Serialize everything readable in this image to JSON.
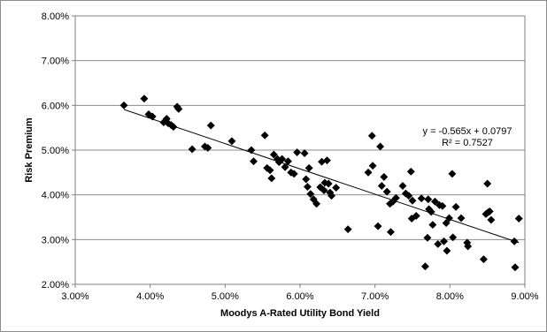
{
  "chart_data": {
    "type": "scatter",
    "title": "",
    "xlabel": "Moodys A-Rated Utility Bond Yield",
    "ylabel": "Risk Premium",
    "xlim": [
      0.03,
      0.09
    ],
    "ylim": [
      0.02,
      0.08
    ],
    "x_ticks": [
      0.03,
      0.04,
      0.05,
      0.06,
      0.07,
      0.08,
      0.09
    ],
    "y_ticks": [
      0.02,
      0.03,
      0.04,
      0.05,
      0.06,
      0.07,
      0.08
    ],
    "x_tick_labels": [
      "3.00%",
      "4.00%",
      "5.00%",
      "6.00%",
      "7.00%",
      "8.00%",
      "9.00%"
    ],
    "y_tick_labels": [
      "2.00%",
      "3.00%",
      "4.00%",
      "5.00%",
      "6.00%",
      "7.00%",
      "8.00%"
    ],
    "grid": "horizontal",
    "legend": "none",
    "marker": "diamond",
    "marker_color": "#000000",
    "trendline": {
      "type": "linear",
      "slope": -0.565,
      "intercept": 0.0797,
      "equation": "y = -0.565x + 0.0797",
      "r_squared_label": "R² = 0.7527"
    },
    "points": [
      [
        0.0365,
        0.06
      ],
      [
        0.0392,
        0.0615
      ],
      [
        0.0398,
        0.058
      ],
      [
        0.0403,
        0.0575
      ],
      [
        0.0418,
        0.0562
      ],
      [
        0.0422,
        0.057
      ],
      [
        0.0424,
        0.056
      ],
      [
        0.0428,
        0.0556
      ],
      [
        0.0431,
        0.0552
      ],
      [
        0.0436,
        0.0597
      ],
      [
        0.0438,
        0.0592
      ],
      [
        0.0456,
        0.0502
      ],
      [
        0.0473,
        0.0508
      ],
      [
        0.0477,
        0.0505
      ],
      [
        0.0481,
        0.0555
      ],
      [
        0.0509,
        0.052
      ],
      [
        0.0535,
        0.05
      ],
      [
        0.0538,
        0.0475
      ],
      [
        0.0553,
        0.0533
      ],
      [
        0.0556,
        0.046
      ],
      [
        0.056,
        0.0455
      ],
      [
        0.0562,
        0.0437
      ],
      [
        0.0565,
        0.049
      ],
      [
        0.057,
        0.048
      ],
      [
        0.0572,
        0.0473
      ],
      [
        0.0576,
        0.048
      ],
      [
        0.058,
        0.0462
      ],
      [
        0.0584,
        0.0475
      ],
      [
        0.0588,
        0.045
      ],
      [
        0.0592,
        0.0447
      ],
      [
        0.0596,
        0.0495
      ],
      [
        0.0606,
        0.0493
      ],
      [
        0.0608,
        0.0435
      ],
      [
        0.061,
        0.0418
      ],
      [
        0.0612,
        0.046
      ],
      [
        0.0614,
        0.0402
      ],
      [
        0.0618,
        0.039
      ],
      [
        0.0622,
        0.038
      ],
      [
        0.0627,
        0.0417
      ],
      [
        0.0629,
        0.0474
      ],
      [
        0.0632,
        0.041
      ],
      [
        0.0633,
        0.0427
      ],
      [
        0.0636,
        0.0477
      ],
      [
        0.0638,
        0.0425
      ],
      [
        0.064,
        0.0405
      ],
      [
        0.0642,
        0.0398
      ],
      [
        0.0648,
        0.0416
      ],
      [
        0.0664,
        0.0323
      ],
      [
        0.0691,
        0.045
      ],
      [
        0.0696,
        0.0532
      ],
      [
        0.0697,
        0.0465
      ],
      [
        0.0704,
        0.033
      ],
      [
        0.0707,
        0.0508
      ],
      [
        0.0709,
        0.042
      ],
      [
        0.0712,
        0.044
      ],
      [
        0.0716,
        0.0407
      ],
      [
        0.072,
        0.038
      ],
      [
        0.0721,
        0.0317
      ],
      [
        0.0724,
        0.0385
      ],
      [
        0.0728,
        0.0393
      ],
      [
        0.0737,
        0.042
      ],
      [
        0.0741,
        0.0403
      ],
      [
        0.0745,
        0.0398
      ],
      [
        0.0748,
        0.0452
      ],
      [
        0.0749,
        0.0347
      ],
      [
        0.075,
        0.0387
      ],
      [
        0.0755,
        0.0353
      ],
      [
        0.0762,
        0.0392
      ],
      [
        0.0767,
        0.024
      ],
      [
        0.077,
        0.0304
      ],
      [
        0.0771,
        0.039
      ],
      [
        0.0772,
        0.0368
      ],
      [
        0.0775,
        0.0362
      ],
      [
        0.0777,
        0.0333
      ],
      [
        0.078,
        0.0385
      ],
      [
        0.0784,
        0.029
      ],
      [
        0.0786,
        0.0377
      ],
      [
        0.079,
        0.0375
      ],
      [
        0.0792,
        0.0296
      ],
      [
        0.0795,
        0.0337
      ],
      [
        0.0796,
        0.0275
      ],
      [
        0.0799,
        0.0348
      ],
      [
        0.0803,
        0.0447
      ],
      [
        0.0804,
        0.0305
      ],
      [
        0.0808,
        0.0373
      ],
      [
        0.0815,
        0.0348
      ],
      [
        0.0823,
        0.0293
      ],
      [
        0.0824,
        0.0285
      ],
      [
        0.0845,
        0.0256
      ],
      [
        0.0848,
        0.0357
      ],
      [
        0.085,
        0.0425
      ],
      [
        0.0851,
        0.0361
      ],
      [
        0.0853,
        0.0363
      ],
      [
        0.0855,
        0.0344
      ],
      [
        0.0886,
        0.0296
      ],
      [
        0.0887,
        0.0238
      ],
      [
        0.0892,
        0.0347
      ]
    ]
  }
}
